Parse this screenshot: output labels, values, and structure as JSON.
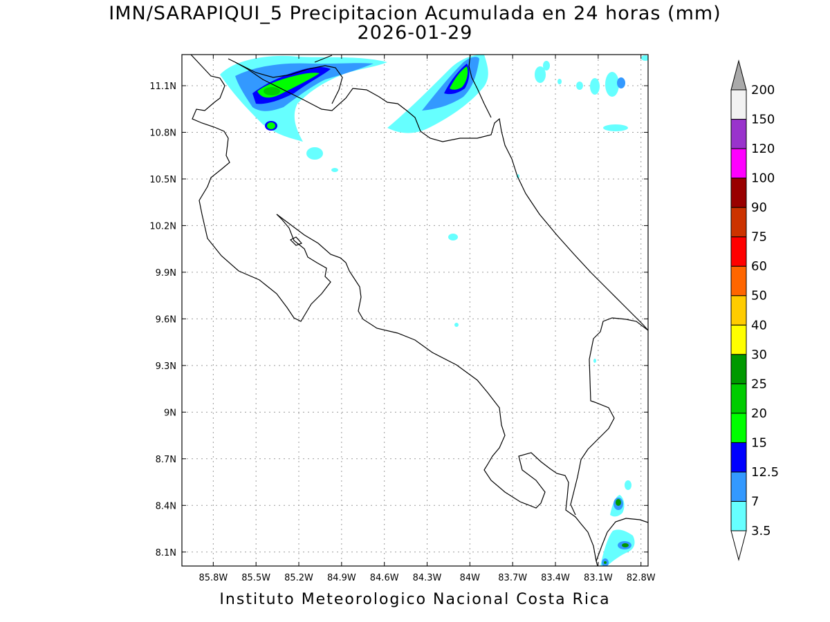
{
  "title": "IMN/SARAPIQUI_5 Precipitacion Acumulada en 24 horas (mm)",
  "date": "2026-01-29",
  "footer": "Instituto Meteorologico Nacional Costa Rica",
  "map": {
    "lon_range": [
      -86.02,
      -82.75
    ],
    "lat_range": [
      8.01,
      11.3
    ],
    "lon_ticks": [
      "85.8W",
      "85.5W",
      "85.2W",
      "84.9W",
      "84.6W",
      "84.3W",
      "84W",
      "83.7W",
      "83.4W",
      "83.1W",
      "82.8W"
    ],
    "lat_ticks": [
      "11.1N",
      "10.8N",
      "10.5N",
      "10.2N",
      "9.9N",
      "9.6N",
      "9.3N",
      "9N",
      "8.7N",
      "8.4N",
      "8.1N"
    ],
    "grid": "dotted"
  },
  "colorbar": {
    "labels": [
      "3.5",
      "7",
      "12.5",
      "15",
      "20",
      "25",
      "30",
      "40",
      "50",
      "60",
      "75",
      "90",
      "100",
      "120",
      "150",
      "200"
    ],
    "colors": [
      "#66ffff",
      "#3399ff",
      "#0000ff",
      "#00ff00",
      "#00cc00",
      "#009900",
      "#ffff00",
      "#ffcc00",
      "#ff6600",
      "#ff0000",
      "#cc3300",
      "#990000",
      "#ff00ff",
      "#9933cc",
      "#f2f2f2"
    ],
    "upper_arrow_color": "#aaaaaa",
    "lower_arrow_color": "#ffffff"
  }
}
